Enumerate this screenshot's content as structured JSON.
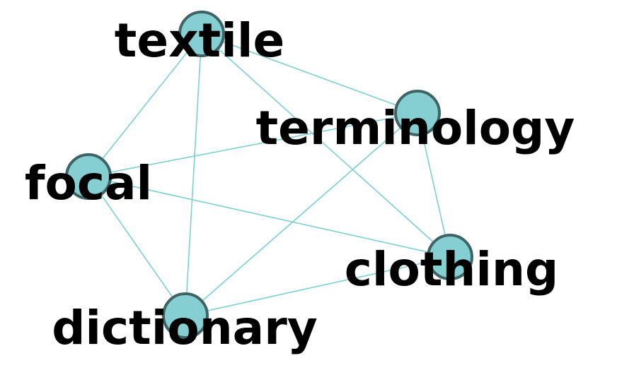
{
  "graph": {
    "node_color": "#85cfd2",
    "node_border_color": "#3e6466",
    "edge_color": "#7ecfd0",
    "label_color": "#000000",
    "nodes": [
      {
        "id": "textile",
        "label": "textile"
      },
      {
        "id": "terminology",
        "label": "terminology"
      },
      {
        "id": "focal",
        "label": "focal"
      },
      {
        "id": "clothing",
        "label": "clothing"
      },
      {
        "id": "dictionary",
        "label": "dictionary"
      }
    ],
    "edges": [
      [
        "textile",
        "terminology"
      ],
      [
        "textile",
        "focal"
      ],
      [
        "textile",
        "clothing"
      ],
      [
        "textile",
        "dictionary"
      ],
      [
        "terminology",
        "focal"
      ],
      [
        "terminology",
        "clothing"
      ],
      [
        "terminology",
        "dictionary"
      ],
      [
        "focal",
        "clothing"
      ],
      [
        "focal",
        "dictionary"
      ],
      [
        "clothing",
        "dictionary"
      ]
    ]
  }
}
